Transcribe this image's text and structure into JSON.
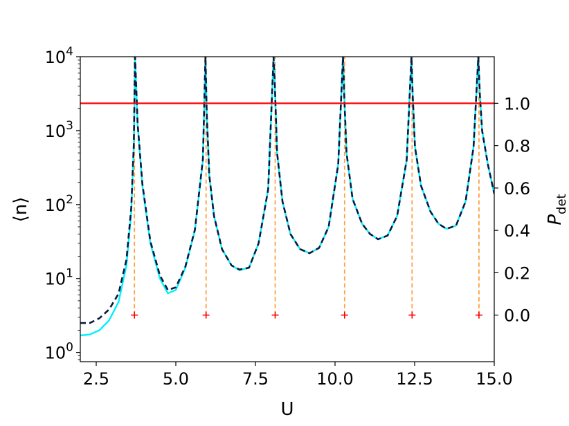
{
  "chart_data": {
    "type": "line",
    "xlabel": "U",
    "ylabel_left": "⟨n⟩",
    "ylabel_right_main": "P",
    "ylabel_right_sub": "det",
    "xlim": [
      2.0,
      15.0
    ],
    "ylim_left": [
      0.75,
      10000
    ],
    "yscale_left": "log",
    "ylim_right": [
      -0.22,
      1.22
    ],
    "x_ticks": [
      {
        "value": 2.5,
        "label": "2.5"
      },
      {
        "value": 5.0,
        "label": "5.0"
      },
      {
        "value": 7.5,
        "label": "7.5"
      },
      {
        "value": 10.0,
        "label": "10.0"
      },
      {
        "value": 12.5,
        "label": "12.5"
      },
      {
        "value": 15.0,
        "label": "15.0"
      }
    ],
    "y_left_ticks": [
      {
        "value": 1,
        "base": "10",
        "exp": "0"
      },
      {
        "value": 10,
        "base": "10",
        "exp": "1"
      },
      {
        "value": 100,
        "base": "10",
        "exp": "2"
      },
      {
        "value": 1000,
        "base": "10",
        "exp": "3"
      },
      {
        "value": 10000,
        "base": "10",
        "exp": "4"
      }
    ],
    "y_right_ticks": [
      {
        "value": 0.0,
        "label": "0.0"
      },
      {
        "value": 0.2,
        "label": "0.2"
      },
      {
        "value": 0.4,
        "label": "0.4"
      },
      {
        "value": 0.6,
        "label": "0.6"
      },
      {
        "value": 0.8,
        "label": "0.8"
      },
      {
        "value": 1.0,
        "label": "1.0"
      }
    ],
    "series": [
      {
        "color": "#00f0ff",
        "style": "solid",
        "axis": "left",
        "x": [
          2.0,
          2.3,
          2.6,
          2.9,
          3.2,
          3.45,
          3.6,
          3.68,
          3.72,
          3.8,
          3.95,
          4.2,
          4.5,
          4.75,
          5.0,
          5.3,
          5.6,
          5.85,
          5.93,
          5.97,
          6.05,
          6.2,
          6.45,
          6.75,
          7.0,
          7.3,
          7.6,
          7.9,
          8.07,
          8.11,
          8.18,
          8.35,
          8.6,
          8.9,
          9.2,
          9.5,
          9.8,
          10.1,
          10.25,
          10.29,
          10.36,
          10.55,
          10.85,
          11.1,
          11.35,
          11.65,
          11.95,
          12.25,
          12.4,
          12.44,
          12.51,
          12.7,
          13.0,
          13.25,
          13.5,
          13.8,
          14.1,
          14.35,
          14.5,
          14.55,
          14.62,
          14.8,
          15.0
        ],
        "y": [
          1.7,
          1.75,
          2.0,
          2.7,
          4.8,
          15,
          80,
          600,
          10000,
          1200,
          180,
          30,
          10,
          6.3,
          7,
          14,
          45,
          400,
          10000,
          1800,
          250,
          70,
          25,
          15,
          13,
          14,
          30,
          160,
          10000,
          4000,
          500,
          110,
          40,
          25,
          22,
          26,
          50,
          350,
          10000,
          3000,
          500,
          120,
          55,
          40,
          34,
          38,
          70,
          400,
          10000,
          3000,
          600,
          180,
          80,
          55,
          47,
          52,
          110,
          600,
          10000,
          3000,
          1000,
          350,
          140
        ]
      },
      {
        "color": "#0a1a3c",
        "style": "dashed",
        "axis": "left",
        "x": [
          2.0,
          2.3,
          2.6,
          2.9,
          3.2,
          3.45,
          3.6,
          3.68,
          3.72,
          3.8,
          3.95,
          4.2,
          4.5,
          4.75,
          5.0,
          5.3,
          5.6,
          5.85,
          5.93,
          5.97,
          6.05,
          6.2,
          6.45,
          6.75,
          7.0,
          7.3,
          7.6,
          7.9,
          8.07,
          8.11,
          8.18,
          8.35,
          8.6,
          8.9,
          9.2,
          9.5,
          9.8,
          10.1,
          10.25,
          10.29,
          10.36,
          10.55,
          10.85,
          11.1,
          11.35,
          11.65,
          11.95,
          12.25,
          12.4,
          12.44,
          12.51,
          12.7,
          13.0,
          13.25,
          13.5,
          13.8,
          14.1,
          14.35,
          14.5,
          14.55,
          14.62,
          14.8,
          15.0
        ],
        "y": [
          2.5,
          2.5,
          2.9,
          3.8,
          6.2,
          18,
          90,
          650,
          10000,
          1250,
          190,
          32,
          11,
          7,
          7.6,
          14.5,
          46,
          410,
          10000,
          1800,
          250,
          70,
          25,
          15,
          13.2,
          14,
          30,
          160,
          10000,
          4000,
          500,
          110,
          40,
          25,
          22,
          26,
          50,
          350,
          10000,
          3000,
          500,
          120,
          55,
          40,
          34,
          38,
          70,
          400,
          10000,
          3000,
          600,
          180,
          80,
          55,
          47,
          52,
          110,
          600,
          10000,
          3000,
          1000,
          350,
          140
        ]
      }
    ],
    "reference_line": {
      "color": "#ff0000",
      "axis": "right",
      "y": 1.0
    },
    "resonance_markers": {
      "color_line": "#ffa040",
      "color_marker": "#ff0000",
      "marker_y": 0.0,
      "x": [
        3.7,
        5.95,
        8.12,
        10.3,
        12.42,
        14.52
      ]
    }
  }
}
